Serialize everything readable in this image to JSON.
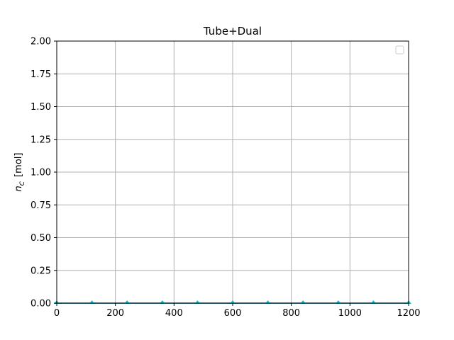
{
  "chart_data": {
    "type": "line",
    "title": "Tube+Dual",
    "xlabel": "",
    "ylabel": "n_C [mol]",
    "ylabel_parts": {
      "var": "n",
      "sub": "C",
      "unit": "[mol]"
    },
    "xlim": [
      0,
      1200
    ],
    "ylim": [
      0,
      2
    ],
    "xticks": [
      0,
      200,
      400,
      600,
      800,
      1000,
      1200
    ],
    "xtick_labels": [
      "0",
      "200",
      "400",
      "600",
      "800",
      "1000",
      "1200"
    ],
    "yticks": [
      0,
      0.25,
      0.5,
      0.75,
      1.0,
      1.25,
      1.5,
      1.75,
      2.0
    ],
    "ytick_labels": [
      "0.00",
      "0.25",
      "0.50",
      "0.75",
      "1.00",
      "1.25",
      "1.50",
      "1.75",
      "2.00"
    ],
    "grid": true,
    "legend": {
      "placement": "top-right",
      "entries": []
    },
    "series": [
      {
        "color": "#1f1f9f",
        "marker": "none",
        "x": [
          0,
          1200
        ],
        "y": [
          0,
          0
        ]
      },
      {
        "color": "#17becf",
        "marker": "triangle-up",
        "x": [
          0,
          120,
          240,
          360,
          480,
          600,
          720,
          840,
          960,
          1080,
          1200
        ],
        "y": [
          0,
          0,
          0,
          0,
          0,
          0,
          0,
          0,
          0,
          0,
          0
        ]
      }
    ]
  }
}
